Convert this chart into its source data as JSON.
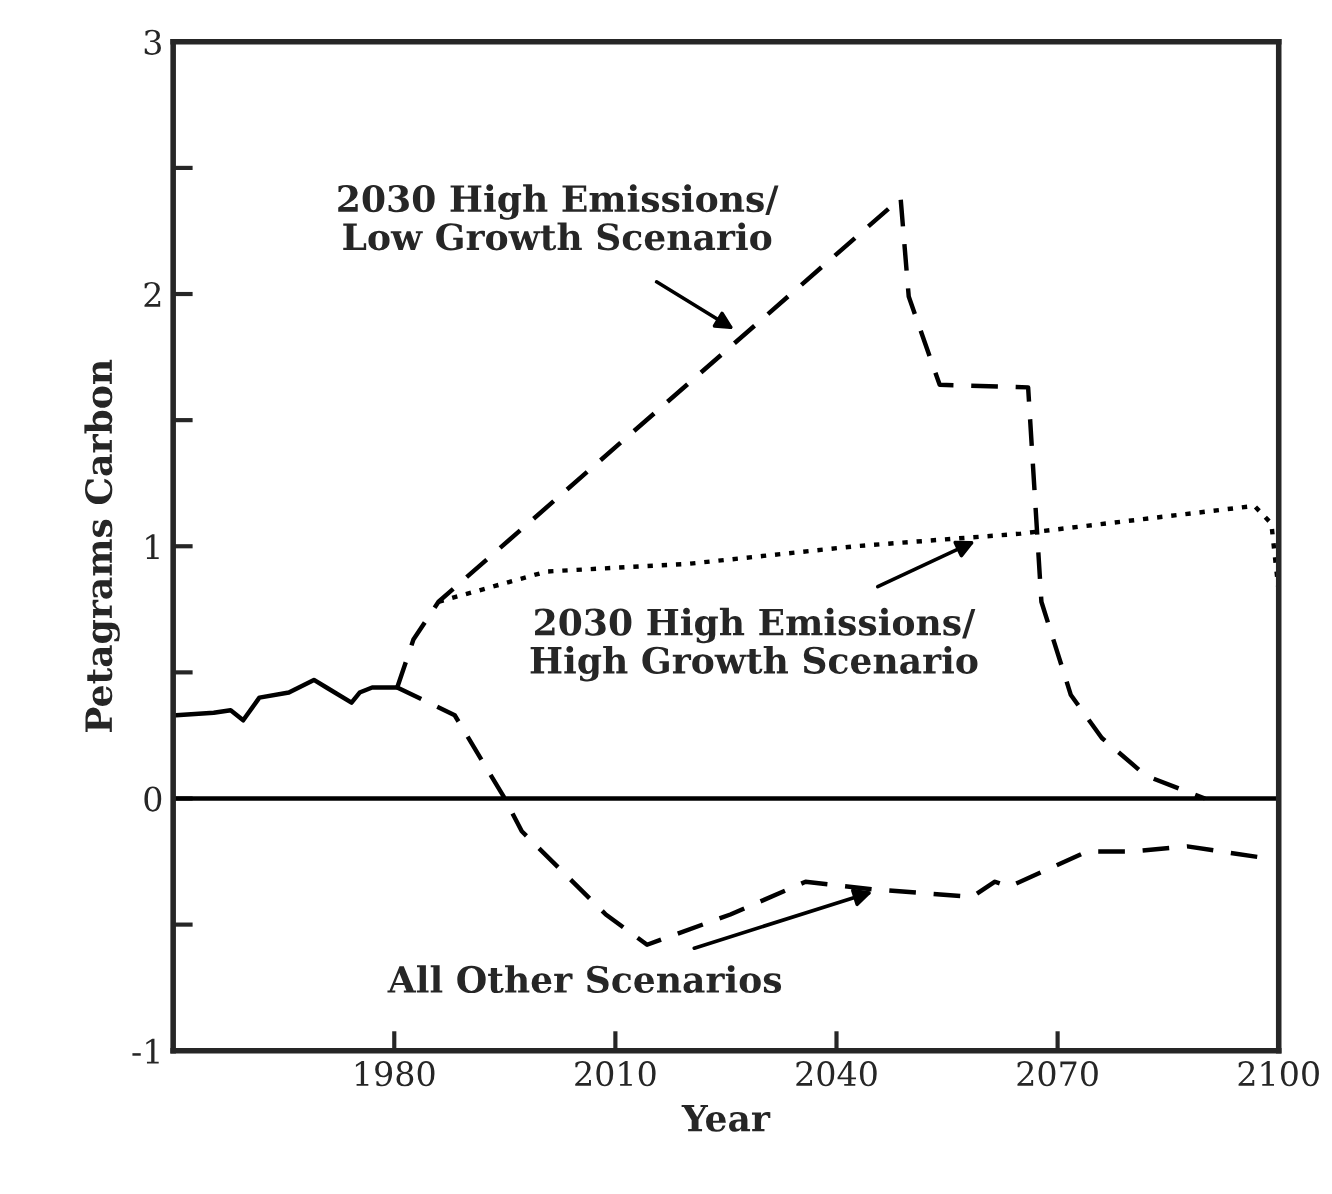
{
  "chart_data": {
    "type": "line",
    "xlabel": "Year",
    "ylabel": "Petagrams Carbon",
    "xlim": [
      1950,
      2100
    ],
    "xticks": [
      1980,
      2010,
      2040,
      2070,
      2100
    ],
    "ylim": [
      -1,
      3
    ],
    "yticks": [
      -1,
      {
        "value": -0.5,
        "label": null
      },
      0,
      {
        "value": 0.5,
        "label": null
      },
      1,
      {
        "value": 1.5,
        "label": null
      },
      2,
      {
        "value": 2.5,
        "label": null
      },
      3
    ],
    "grid": false,
    "legend": false,
    "ref_lines": [
      {
        "axis": "y",
        "value": 0,
        "color": "#000000",
        "line_style": "solid"
      }
    ],
    "series": [
      {
        "color": "#000000",
        "line_style": "solid",
        "x": [
          1950.4,
          1955.5,
          1957.8,
          1959.5,
          1961.7,
          1965.7,
          1969.1,
          1970.8,
          1974.2,
          1975.3,
          1977,
          1980.4
        ],
        "values": [
          0.33,
          0.34,
          0.35,
          0.31,
          0.4,
          0.42,
          0.47,
          0.44,
          0.38,
          0.42,
          0.44,
          0.44
        ]
      },
      {
        "color": "#000000",
        "line_style": "dashed",
        "x": [
          1980.4,
          1982.6,
          1986,
          2048.7,
          2049.8,
          2054,
          2066,
          2067.8,
          2071.8,
          2076,
          2082,
          2090
        ],
        "values": [
          0.44,
          0.63,
          0.78,
          2.38,
          1.99,
          1.64,
          1.63,
          0.78,
          0.41,
          0.24,
          0.09,
          0
        ]
      },
      {
        "color": "#000000",
        "line_style": "dotted",
        "x": [
          1986,
          2000.7,
          2019.8,
          2042.5,
          2065,
          2096.7,
          2099,
          2100
        ],
        "values": [
          0.78,
          0.9,
          0.93,
          1.0,
          1.05,
          1.16,
          1.09,
          0.82
        ]
      },
      {
        "color": "#000000",
        "line_style": "dashed",
        "x": [
          1980.4,
          1988.2,
          1995,
          1997.3,
          2008.7,
          2014.3,
          2025.6,
          2035.8,
          2044.9,
          2058.4,
          2061.5,
          2063.4,
          2074,
          2080,
          2087.6,
          2099
        ],
        "values": [
          0.44,
          0.33,
          0.0,
          -0.13,
          -0.46,
          -0.58,
          -0.46,
          -0.33,
          -0.36,
          -0.39,
          -0.33,
          -0.35,
          -0.21,
          -0.21,
          -0.19,
          -0.24
        ]
      }
    ],
    "annotations": [
      {
        "text": "2030 High Emissions/\nLow Growth Scenario",
        "x": 2026.1,
        "y": 1.86
      },
      {
        "text": "2030 High Emissions/\nHigh Growth Scenario",
        "x": 2058.8,
        "y": 1.02
      },
      {
        "text": "All Other Scenarios",
        "x": 2044.9,
        "y": -0.37
      }
    ]
  }
}
